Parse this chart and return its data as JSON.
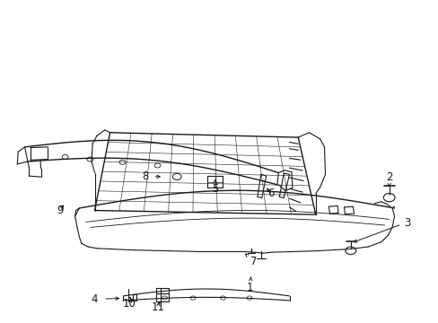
{
  "bg_color": "#ffffff",
  "line_color": "#1a1a1a",
  "figsize": [
    4.89,
    3.6
  ],
  "dpi": 100,
  "label_positions": {
    "1": [
      0.57,
      0.108,
      0.562,
      0.138
    ],
    "2": [
      0.888,
      0.435,
      0.888,
      0.405
    ],
    "3": [
      0.93,
      0.31,
      0.81,
      0.275
    ],
    "4": [
      0.215,
      0.072,
      0.27,
      0.072
    ],
    "5": [
      0.5,
      0.415,
      0.5,
      0.445
    ],
    "6": [
      0.62,
      0.4,
      0.62,
      0.43
    ],
    "7": [
      0.58,
      0.195,
      0.565,
      0.218
    ],
    "8": [
      0.335,
      0.452,
      0.37,
      0.452
    ],
    "9": [
      0.14,
      0.35,
      0.148,
      0.375
    ],
    "10": [
      0.295,
      0.058,
      0.295,
      0.082
    ],
    "11": [
      0.36,
      0.048,
      0.36,
      0.072
    ]
  }
}
